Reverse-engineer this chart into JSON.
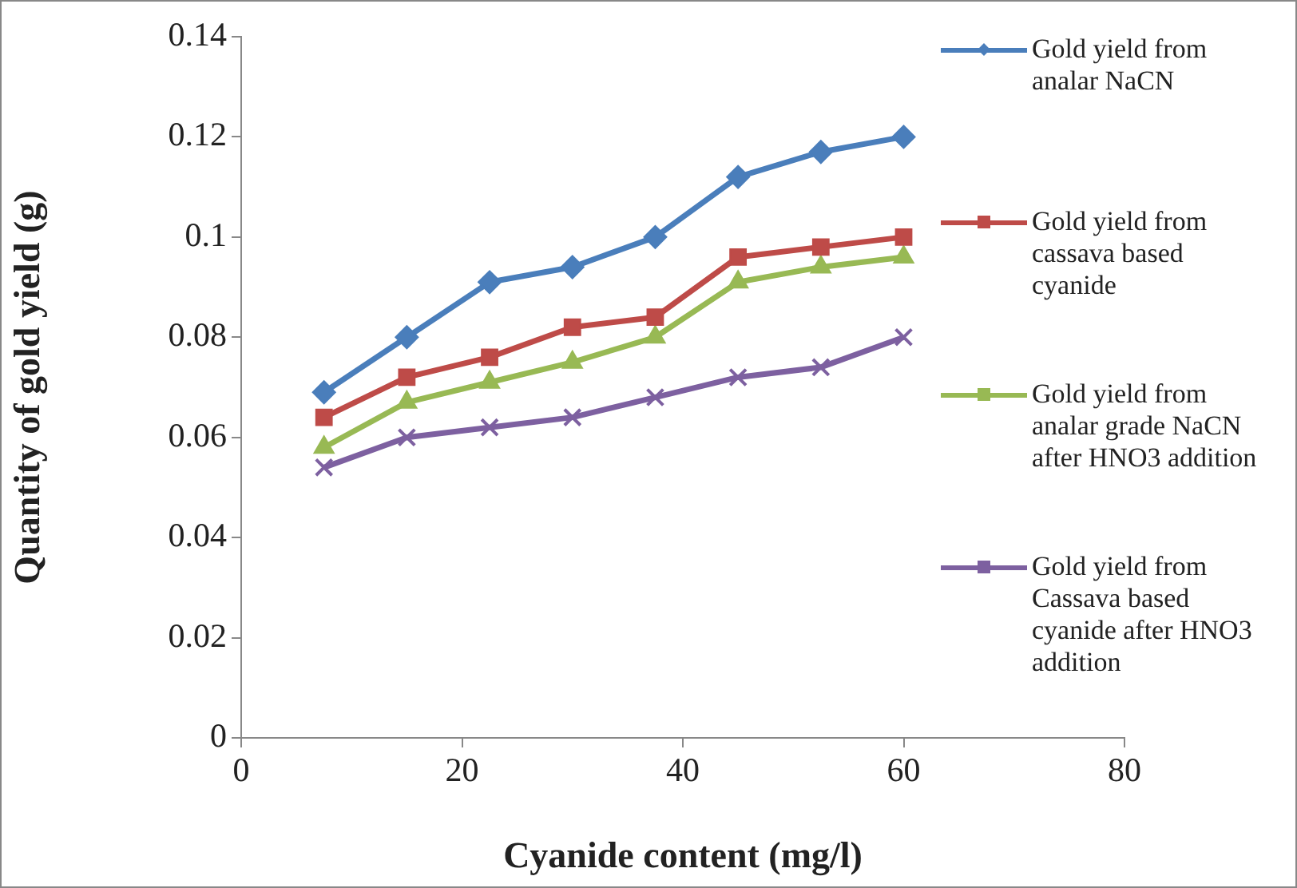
{
  "chart_data": {
    "type": "line",
    "xlabel": "Cyanide content (mg/l)",
    "ylabel": "Quantity of gold yield (g)",
    "x": [
      7.5,
      15,
      22.5,
      30,
      37.5,
      45,
      52.5,
      60
    ],
    "xlim": [
      0,
      80
    ],
    "xticks": [
      0,
      20,
      40,
      60,
      80
    ],
    "ylim": [
      0,
      0.14
    ],
    "yticks": [
      0,
      0.02,
      0.04,
      0.06,
      0.08,
      0.1,
      0.12,
      0.14
    ],
    "grid": false,
    "legend": "right",
    "series": [
      {
        "name": "Gold yield  from analar NaCN",
        "color": "#4a7ebb",
        "marker": "diamond",
        "values": [
          0.069,
          0.08,
          0.091,
          0.094,
          0.1,
          0.112,
          0.117,
          0.12
        ]
      },
      {
        "name": "Gold yield from cassava based cyanide",
        "color": "#be4b48",
        "marker": "square",
        "values": [
          0.064,
          0.072,
          0.076,
          0.082,
          0.084,
          0.096,
          0.098,
          0.1
        ]
      },
      {
        "name": "Gold yield from analar grade NaCN after HNO3 addition",
        "color": "#98b954",
        "marker": "triangle",
        "values": [
          0.058,
          0.067,
          0.071,
          0.075,
          0.08,
          0.091,
          0.094,
          0.096
        ]
      },
      {
        "name": "Gold yield from Cassava based cyanide after HNO3 addition",
        "color": "#7d60a0",
        "marker": "cross",
        "values": [
          0.054,
          0.06,
          0.062,
          0.064,
          0.068,
          0.072,
          0.074,
          0.08
        ]
      }
    ]
  }
}
